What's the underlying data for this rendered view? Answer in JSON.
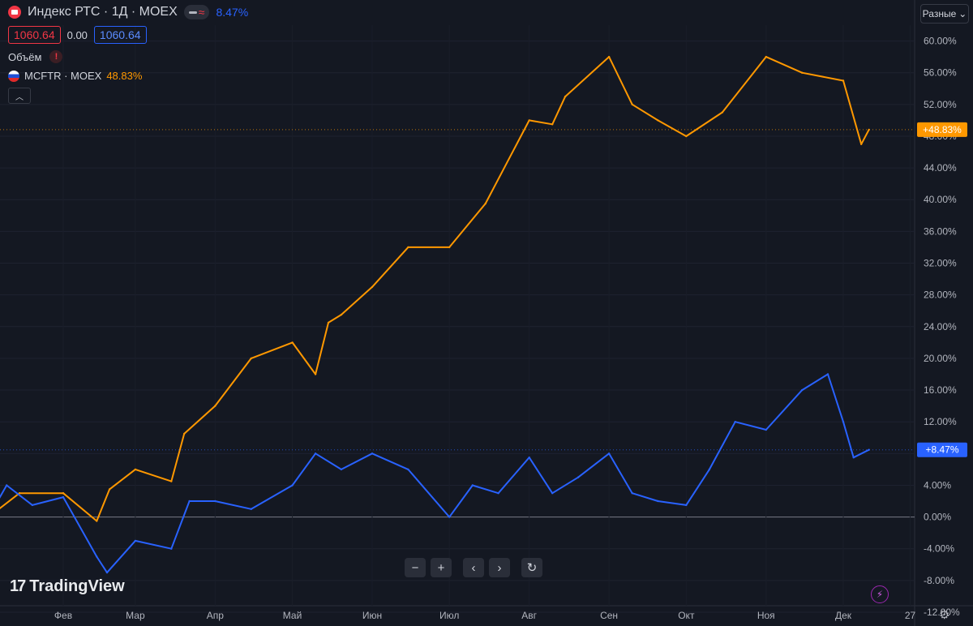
{
  "header": {
    "title": "Индекс РТС · 1Д · MOEX",
    "compare_pct": "8.47%",
    "price_left": "1060.64",
    "change": "0.00",
    "price_right": "1060.64",
    "volume_label": "Объём",
    "volume_warning": "!",
    "compare_symbol": "MCFTR · MOEX",
    "compare_symbol_pct": "48.83%"
  },
  "scale_button": "Разные",
  "logo_text": "TradingView",
  "icons": {
    "red_flag": "rts-flag-icon",
    "ru_flag": "russia-flag-icon",
    "toggle": "compare-toggle-icon",
    "warning": "warning-icon",
    "collapse": "chevron-up-icon",
    "zoom_out": "minus-icon",
    "zoom_in": "plus-icon",
    "scroll_left": "chevron-left-icon",
    "scroll_right": "chevron-right-icon",
    "reset": "reset-icon",
    "flash": "lightning-icon",
    "settings": "gear-icon"
  },
  "colors": {
    "background": "#141822",
    "orange": "#ff9800",
    "blue": "#2962ff",
    "red": "#f23645",
    "grid": "#1e2230"
  },
  "chart_data": {
    "type": "line",
    "ylim": [
      -12,
      62
    ],
    "y_ticks": [
      "60.00%",
      "56.00%",
      "52.00%",
      "48.00%",
      "44.00%",
      "40.00%",
      "36.00%",
      "32.00%",
      "28.00%",
      "24.00%",
      "20.00%",
      "16.00%",
      "12.00%",
      "8.00%",
      "4.00%",
      "0.00%",
      "-4.00%",
      "-8.00%",
      "-12.00%"
    ],
    "y_tick_values": [
      60,
      56,
      52,
      48,
      44,
      40,
      36,
      32,
      28,
      24,
      20,
      16,
      12,
      8,
      4,
      0,
      -4,
      -8,
      -12
    ],
    "x_labels": [
      "Фев",
      "Мар",
      "Апр",
      "Май",
      "Июн",
      "Июл",
      "Авг",
      "Сен",
      "Окт",
      "Ноя",
      "Дек",
      "27"
    ],
    "x_label_dates": [
      "2025-02-01",
      "2025-03-01",
      "2025-04-01",
      "2025-05-01",
      "2025-06-01",
      "2025-07-01",
      "2025-08-01",
      "2025-09-01",
      "2025-10-01",
      "2025-11-01",
      "2025-12-01",
      "2025-12-27"
    ],
    "x_start": "2025-01-03",
    "x_end": "2025-12-11",
    "series": [
      {
        "name": "MCFTR · MOEX",
        "color": "#ff9800",
        "last_label": "+48.83%",
        "x": [
          "2025-01-03",
          "2025-01-15",
          "2025-02-01",
          "2025-02-14",
          "2025-02-19",
          "2025-03-01",
          "2025-03-15",
          "2025-03-20",
          "2025-04-01",
          "2025-04-15",
          "2025-05-01",
          "2025-05-10",
          "2025-05-15",
          "2025-05-20",
          "2025-06-01",
          "2025-06-15",
          "2025-07-01",
          "2025-07-15",
          "2025-08-01",
          "2025-08-10",
          "2025-08-15",
          "2025-09-01",
          "2025-09-10",
          "2025-09-20",
          "2025-10-01",
          "2025-10-15",
          "2025-11-01",
          "2025-11-15",
          "2025-12-01",
          "2025-12-08",
          "2025-12-11"
        ],
        "values": [
          0,
          3,
          3,
          -0.5,
          3.5,
          6,
          4.5,
          10.5,
          14,
          20,
          22,
          18,
          24.5,
          25.5,
          29,
          34,
          34,
          39.5,
          50,
          49.5,
          53,
          58,
          52,
          50,
          48,
          51,
          58,
          56,
          55,
          47,
          48.83
        ]
      },
      {
        "name": "Индекс РТС · 1Д · MOEX",
        "color": "#2962ff",
        "last_label": "+8.47%",
        "x": [
          "2025-01-03",
          "2025-01-10",
          "2025-01-20",
          "2025-02-01",
          "2025-02-14",
          "2025-02-18",
          "2025-03-01",
          "2025-03-15",
          "2025-03-22",
          "2025-04-01",
          "2025-04-15",
          "2025-05-01",
          "2025-05-10",
          "2025-05-20",
          "2025-06-01",
          "2025-06-15",
          "2025-07-01",
          "2025-07-10",
          "2025-07-20",
          "2025-08-01",
          "2025-08-10",
          "2025-08-20",
          "2025-09-01",
          "2025-09-10",
          "2025-09-20",
          "2025-10-01",
          "2025-10-10",
          "2025-10-20",
          "2025-11-01",
          "2025-11-15",
          "2025-11-25",
          "2025-12-01",
          "2025-12-05",
          "2025-12-11"
        ],
        "values": [
          0,
          4,
          1.5,
          2.5,
          -5,
          -7,
          -3,
          -4,
          2,
          2,
          1,
          4,
          8,
          6,
          8,
          6,
          0,
          4,
          3,
          7.5,
          3,
          5,
          8,
          3,
          2,
          1.5,
          6,
          12,
          11,
          16,
          18,
          12,
          7.5,
          8.47
        ]
      }
    ],
    "grid": true,
    "zero_line": true
  }
}
